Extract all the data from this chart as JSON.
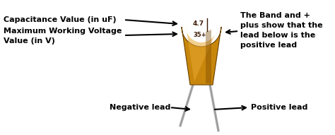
{
  "bg_color": "#ffffff",
  "cap_color_main": "#c8870c",
  "cap_color_light": "#e8a832",
  "cap_color_dark": "#a06008",
  "cap_color_band": "#7a4800",
  "cap_text1": "4.7",
  "cap_text2": "35+",
  "cap_text_color": "#3a1800",
  "lead_color": "#b0b0b0",
  "lead_shadow": "#808080",
  "arrow_color": "#000000",
  "text_color": "#000000",
  "label_cap_val": "Capacitance Value (in uF)",
  "label_max_volt1": "Maximum Working Voltage",
  "label_max_volt2": "Value (in V)",
  "label_band": "The Band and +",
  "label_band2": "plus show that the",
  "label_band3": "lead below is the",
  "label_band4": "positive lead",
  "label_neg": "Negative lead",
  "label_pos": "Positive lead",
  "font_size": 8.0,
  "font_size_cap_text": 5.0
}
